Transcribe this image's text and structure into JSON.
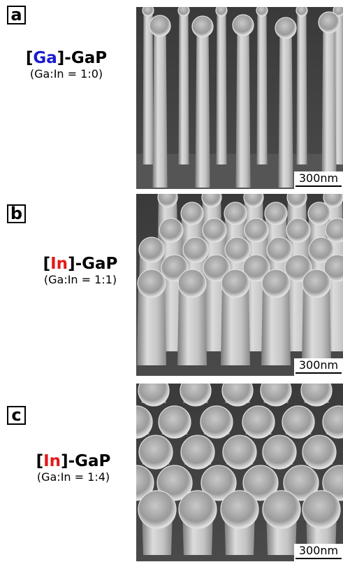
{
  "panels": [
    {
      "letter": "a",
      "label_open": "[",
      "label_element": "Ga",
      "label_element_color": "#1a1ad4",
      "label_rest": "]-GaP",
      "ratio": "(Ga:In = 1:0)",
      "scale": "300nm"
    },
    {
      "letter": "b",
      "label_open": "[",
      "label_element": "In",
      "label_element_color": "#e41a1a",
      "label_rest": "]-GaP",
      "ratio": "(Ga:In = 1:1)",
      "scale": "300nm"
    },
    {
      "letter": "c",
      "label_open": "[",
      "label_element": "In",
      "label_element_color": "#e41a1a",
      "label_rest": "]-GaP",
      "ratio": "(Ga:In = 1:4)",
      "scale": "300nm"
    }
  ]
}
